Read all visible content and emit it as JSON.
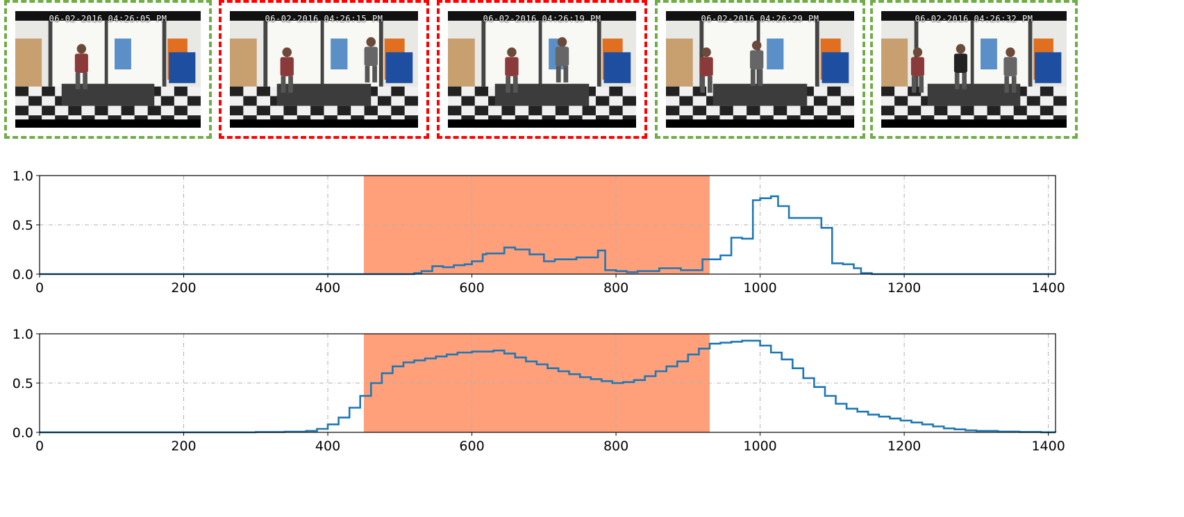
{
  "frame_colors": {
    "normal": "#70ad47",
    "anomaly": "#ff0000"
  },
  "frames": [
    {
      "timestamp": "06-02-2016 04:26:05 PM",
      "status": "normal"
    },
    {
      "timestamp": "06-02-2016 04:26:15 PM",
      "status": "anomaly"
    },
    {
      "timestamp": "06-02-2016 04:26:19 PM",
      "status": "anomaly"
    },
    {
      "timestamp": "06-02-2016 04:26:29 PM",
      "status": "normal"
    },
    {
      "timestamp": "06-02-2016 04:26:32 PM",
      "status": "normal"
    }
  ],
  "chart_data": [
    {
      "type": "line",
      "xlim": [
        0,
        1410
      ],
      "ylim": [
        0,
        1.0
      ],
      "x_ticks": [
        0,
        200,
        400,
        600,
        800,
        1000,
        1200,
        1400
      ],
      "y_ticks": [
        0.0,
        0.5,
        1.0
      ],
      "y_tick_labels": [
        "0.0",
        "0.5",
        "1.0"
      ],
      "grid": true,
      "line_color": "#1f77b4",
      "highlight": {
        "x_start": 450,
        "x_end": 930,
        "color": "#ffa07a"
      },
      "series": [
        {
          "x": [
            0,
            520,
            530,
            545,
            560,
            575,
            590,
            600,
            615,
            620,
            630,
            645,
            660,
            680,
            700,
            715,
            730,
            745,
            760,
            775,
            785,
            800,
            815,
            830,
            845,
            860,
            875,
            890,
            905,
            920,
            935,
            945,
            960,
            975,
            990,
            1000,
            1015,
            1025,
            1040,
            1055,
            1070,
            1085,
            1100,
            1115,
            1130,
            1140,
            1155,
            1410
          ],
          "y": [
            0.0,
            0.01,
            0.03,
            0.08,
            0.07,
            0.09,
            0.1,
            0.13,
            0.2,
            0.21,
            0.21,
            0.27,
            0.25,
            0.2,
            0.13,
            0.15,
            0.15,
            0.17,
            0.17,
            0.24,
            0.04,
            0.03,
            0.02,
            0.03,
            0.03,
            0.06,
            0.06,
            0.04,
            0.04,
            0.15,
            0.15,
            0.19,
            0.37,
            0.36,
            0.75,
            0.77,
            0.79,
            0.69,
            0.57,
            0.57,
            0.57,
            0.47,
            0.11,
            0.1,
            0.06,
            0.01,
            0.0,
            0.0
          ]
        }
      ]
    },
    {
      "type": "line",
      "xlim": [
        0,
        1410
      ],
      "ylim": [
        0,
        1.0
      ],
      "x_ticks": [
        0,
        200,
        400,
        600,
        800,
        1000,
        1200,
        1400
      ],
      "y_ticks": [
        0.0,
        0.5,
        1.0
      ],
      "y_tick_labels": [
        "0.0",
        "0.5",
        "1.0"
      ],
      "grid": true,
      "line_color": "#1f77b4",
      "highlight": {
        "x_start": 450,
        "x_end": 930,
        "color": "#ffa07a"
      },
      "series": [
        {
          "x": [
            0,
            300,
            340,
            370,
            385,
            400,
            415,
            430,
            445,
            460,
            475,
            490,
            505,
            520,
            535,
            550,
            565,
            580,
            600,
            630,
            645,
            660,
            675,
            690,
            705,
            720,
            735,
            750,
            765,
            780,
            795,
            810,
            825,
            840,
            855,
            870,
            885,
            900,
            915,
            930,
            945,
            960,
            975,
            990,
            1000,
            1015,
            1030,
            1045,
            1060,
            1075,
            1090,
            1105,
            1120,
            1135,
            1150,
            1165,
            1180,
            1195,
            1210,
            1225,
            1240,
            1255,
            1270,
            1285,
            1300,
            1330,
            1360,
            1390,
            1410
          ],
          "y": [
            0.0,
            0.003,
            0.006,
            0.015,
            0.035,
            0.08,
            0.15,
            0.25,
            0.37,
            0.5,
            0.6,
            0.67,
            0.71,
            0.73,
            0.75,
            0.77,
            0.79,
            0.81,
            0.82,
            0.83,
            0.8,
            0.76,
            0.72,
            0.69,
            0.65,
            0.62,
            0.59,
            0.56,
            0.54,
            0.52,
            0.5,
            0.51,
            0.53,
            0.57,
            0.62,
            0.67,
            0.72,
            0.79,
            0.85,
            0.9,
            0.91,
            0.92,
            0.93,
            0.93,
            0.88,
            0.81,
            0.74,
            0.65,
            0.55,
            0.46,
            0.37,
            0.29,
            0.24,
            0.21,
            0.18,
            0.16,
            0.14,
            0.12,
            0.1,
            0.08,
            0.06,
            0.04,
            0.03,
            0.02,
            0.015,
            0.008,
            0.004,
            0.001,
            0.0
          ]
        }
      ]
    }
  ]
}
